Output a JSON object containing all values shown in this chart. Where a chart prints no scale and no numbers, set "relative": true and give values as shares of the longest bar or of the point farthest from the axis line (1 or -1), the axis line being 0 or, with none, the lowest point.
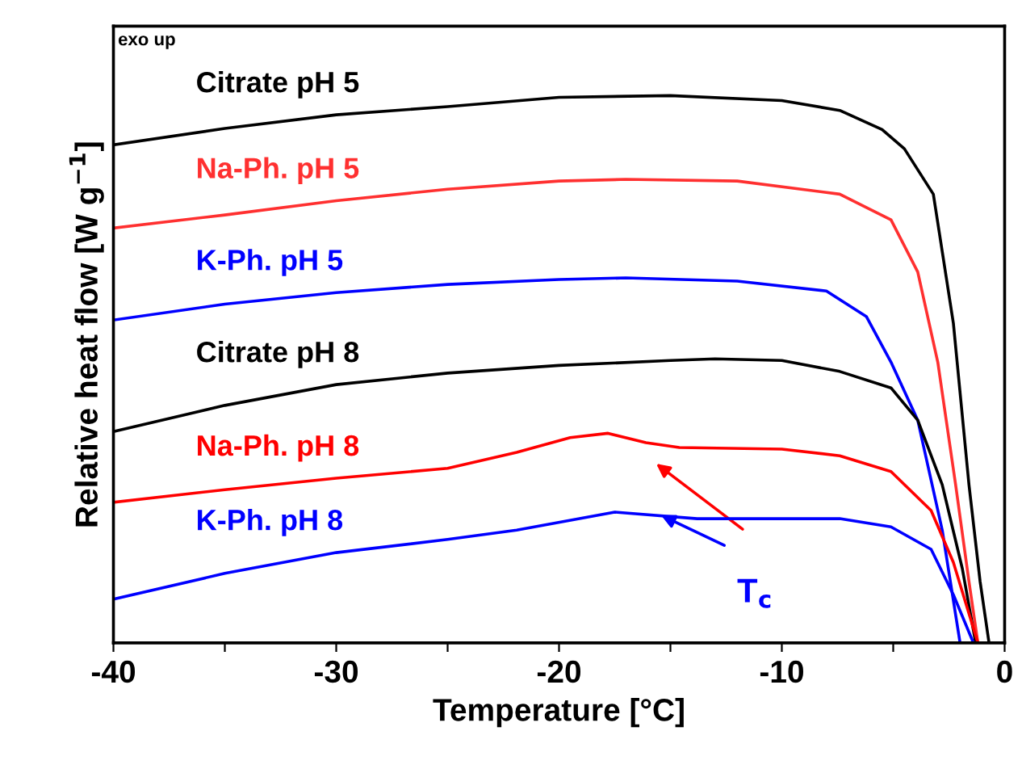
{
  "chart_data": {
    "type": "line",
    "relative": true,
    "xlabel": "Temperature [°C]",
    "ylabel": "Relative heat flow [W g$^{−1}$]",
    "xlim": [
      -40,
      0
    ],
    "xticks": [
      -40,
      {
        "value": -35,
        "label": null
      },
      -30,
      {
        "value": -25,
        "label": null
      },
      -20,
      {
        "value": -15,
        "label": null
      },
      -10,
      {
        "value": -5,
        "label": null
      },
      0
    ],
    "annotations": [
      "exo up",
      "T$_{c}$"
    ],
    "series": [
      {
        "name": "Citrate pH 5",
        "color": "#000000",
        "x": [
          -40,
          -35,
          -30,
          -25,
          -20,
          -15,
          -10,
          -7.4,
          -5.5,
          -4.5,
          -3.2,
          -2.3,
          -1.6,
          -1.1,
          -0.7
        ],
        "values": [
          0.91,
          0.94,
          0.965,
          0.98,
          0.997,
          1.0,
          0.991,
          0.973,
          0.938,
          0.903,
          0.82,
          0.584,
          0.289,
          0.112,
          0
        ]
      },
      {
        "name": "Na-Ph. pH 5",
        "color": "#ff3030",
        "x": [
          -40,
          -35,
          -30,
          -25,
          -20,
          -17,
          -12,
          -7.4,
          -5.1,
          -3.9,
          -3.0,
          -2.2,
          -1.6,
          -1.2
        ],
        "values": [
          0.758,
          0.782,
          0.808,
          0.829,
          0.844,
          0.847,
          0.844,
          0.82,
          0.773,
          0.678,
          0.513,
          0.289,
          0.112,
          0
        ]
      },
      {
        "name": "K-Ph. pH 5",
        "color": "#0000ff",
        "x": [
          -40,
          -35,
          -30,
          -25,
          -20,
          -17,
          -12,
          -8,
          -6.2,
          -5.1,
          -3.9,
          -2.8,
          -2.0
        ],
        "values": [
          0.59,
          0.619,
          0.64,
          0.655,
          0.664,
          0.667,
          0.661,
          0.643,
          0.596,
          0.513,
          0.407,
          0.206,
          0
        ]
      },
      {
        "name": "Citrate pH 8",
        "color": "#000000",
        "x": [
          -40,
          -35,
          -30,
          -25,
          -20,
          -15,
          -13,
          -10,
          -7.4,
          -5.1,
          -3.9,
          -2.8,
          -1.9,
          -1.3
        ],
        "values": [
          0.386,
          0.434,
          0.472,
          0.493,
          0.507,
          0.516,
          0.519,
          0.516,
          0.496,
          0.466,
          0.407,
          0.289,
          0.136,
          0
        ]
      },
      {
        "name": "Na-Ph. pH 8",
        "color": "#ff0000",
        "x": [
          -40,
          -35,
          -30,
          -25,
          -21.9,
          -19.5,
          -17.8,
          -16.1,
          -14.6,
          -10,
          -7.4,
          -5.1,
          -3.3,
          -2.3,
          -1.2
        ],
        "values": [
          0.257,
          0.28,
          0.301,
          0.319,
          0.348,
          0.375,
          0.383,
          0.366,
          0.357,
          0.354,
          0.342,
          0.313,
          0.242,
          0.147,
          0
        ]
      },
      {
        "name": "K-Ph. pH 8",
        "color": "#0000ff",
        "x": [
          -40,
          -35,
          -30,
          -25,
          -21.9,
          -17.5,
          -13.8,
          -10,
          -7.4,
          -5.1,
          -3.3,
          -2.3,
          -1.4
        ],
        "values": [
          0.08,
          0.127,
          0.165,
          0.189,
          0.206,
          0.239,
          0.227,
          0.227,
          0.227,
          0.212,
          0.171,
          0.088,
          0
        ]
      }
    ]
  }
}
